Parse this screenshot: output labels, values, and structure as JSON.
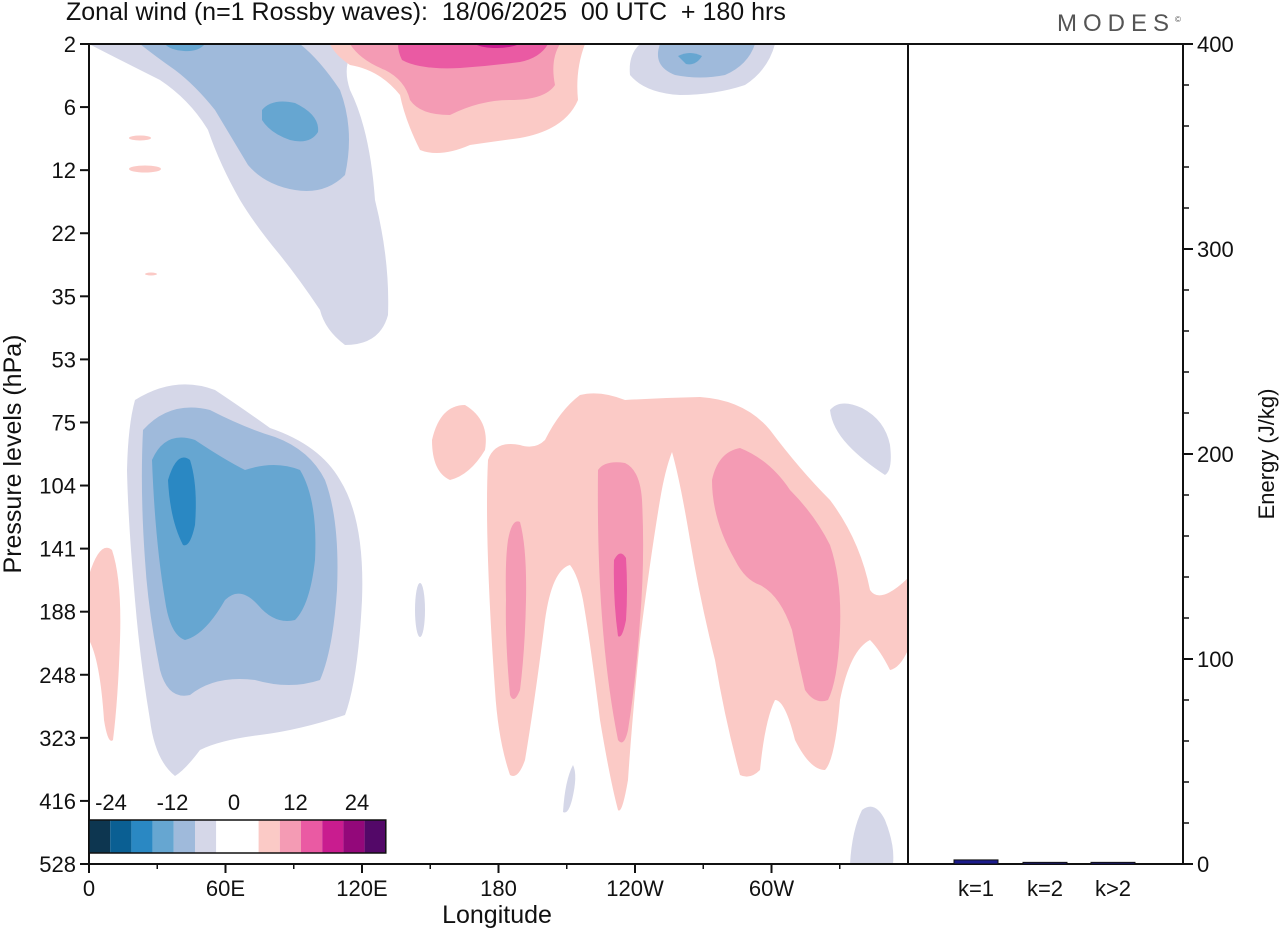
{
  "title": "Zonal wind (n=1 Rossby waves):  18/06/2025  00 UTC  + 180 hrs",
  "brand": "MODES",
  "brand_mark": "©",
  "chart_data": [
    {
      "type": "heatmap",
      "xlabel": "Longitude",
      "ylabel": "Pressure levels (hPa)",
      "x_ticks": [
        "0",
        "60E",
        "120E",
        "180",
        "120W",
        "60W"
      ],
      "y_ticks": [
        "2",
        "6",
        "12",
        "22",
        "35",
        "53",
        "75",
        "104",
        "141",
        "188",
        "248",
        "323",
        "416",
        "528"
      ],
      "colorbar": {
        "labels": [
          "-24",
          "-12",
          "0",
          "12",
          "24"
        ],
        "colors": [
          "#0d3650",
          "#0a5f93",
          "#2a88c3",
          "#66a6d1",
          "#9fbadb",
          "#d5d7e8",
          "#ffffff",
          "#ffffff",
          "#fbcac6",
          "#f49bb4",
          "#ea5aa3",
          "#c91c8f",
          "#93087a",
          "#530868"
        ]
      },
      "levels_shown": [
        -18,
        -12,
        -6,
        -3,
        3,
        6,
        12
      ]
    },
    {
      "type": "bar",
      "ylabel": "Energy (J/kg)",
      "ylim": [
        0,
        400
      ],
      "y_ticks": [
        "0",
        "100",
        "200",
        "300",
        "400"
      ],
      "categories": [
        "k=1",
        "k=2",
        "k>2"
      ],
      "values": [
        2,
        0.8,
        0.8
      ],
      "bar_color": "#1c1c8c"
    }
  ]
}
